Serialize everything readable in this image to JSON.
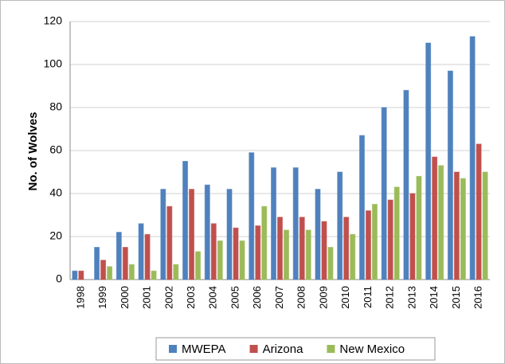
{
  "chart_data": {
    "type": "bar",
    "y_label": "No. of Wolves",
    "categories": [
      "1998",
      "1999",
      "2000",
      "2001",
      "2002",
      "2003",
      "2004",
      "2005",
      "2006",
      "2007",
      "2008",
      "2009",
      "2010",
      "2011",
      "2012",
      "2013",
      "2014",
      "2015",
      "2016"
    ],
    "series": [
      {
        "name": "MWEPA",
        "color": "#4f81bd",
        "values": [
          4,
          15,
          22,
          26,
          42,
          55,
          44,
          42,
          59,
          52,
          52,
          42,
          50,
          67,
          80,
          88,
          110,
          97,
          113
        ]
      },
      {
        "name": "Arizona",
        "color": "#c0504d",
        "values": [
          4,
          9,
          15,
          21,
          34,
          42,
          26,
          24,
          25,
          29,
          29,
          27,
          29,
          32,
          37,
          40,
          57,
          50,
          63
        ]
      },
      {
        "name": "New Mexico",
        "color": "#9bbb59",
        "values": [
          0,
          6,
          7,
          4,
          7,
          13,
          18,
          18,
          34,
          23,
          23,
          15,
          21,
          35,
          43,
          48,
          53,
          47,
          50
        ]
      }
    ],
    "ylim": [
      0,
      120
    ],
    "yticks": [
      0,
      20,
      40,
      60,
      80,
      100,
      120
    ],
    "grid": true,
    "legend": "bottom"
  }
}
